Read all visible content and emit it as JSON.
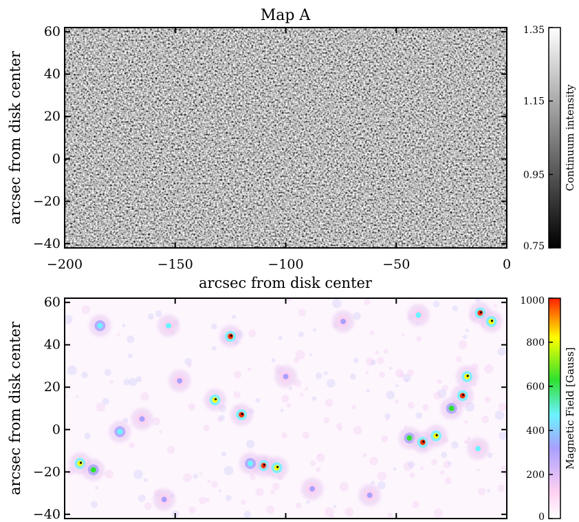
{
  "figure_title": "Map A",
  "chart_data": [
    {
      "type": "heatmap",
      "title": "Map A",
      "xlabel": "arcsec from disk center",
      "ylabel": "arcsec from disk center",
      "xlim": [
        -200,
        0
      ],
      "ylim": [
        -42,
        62
      ],
      "x_ticks": [
        -200,
        -150,
        -100,
        -50,
        0
      ],
      "x_tick_labels": [
        "−200",
        "−150",
        "−100",
        "−50",
        "0"
      ],
      "y_ticks": [
        -40,
        -20,
        0,
        20,
        40,
        60
      ],
      "y_tick_labels": [
        "−40",
        "−20",
        "0",
        "20",
        "40",
        "60"
      ],
      "colorbar": {
        "label": "Continuum intensity",
        "range": [
          0.75,
          1.35
        ],
        "ticks": [
          0.75,
          0.95,
          1.15,
          1.35
        ],
        "tick_labels": [
          "0.75",
          "0.95",
          "1.15",
          "1.35"
        ],
        "colormap": "grayscale"
      },
      "pattern": "solar granulation"
    },
    {
      "type": "heatmap",
      "xlabel": "",
      "ylabel": "arcsec from disk center",
      "xlim": [
        -200,
        0
      ],
      "ylim": [
        -42,
        62
      ],
      "x_ticks": [
        -200,
        -150,
        -100,
        -50,
        0
      ],
      "y_ticks": [
        -40,
        -20,
        0,
        20,
        40,
        60
      ],
      "y_tick_labels": [
        "−40",
        "−20",
        "0",
        "20",
        "40",
        "60"
      ],
      "colorbar": {
        "label": "Magnetic Field [Gauss]",
        "range": [
          0,
          1000
        ],
        "ticks": [
          0,
          200,
          400,
          600,
          800,
          1000
        ],
        "tick_labels": [
          "0",
          "200",
          "400",
          "600",
          "800",
          "1000"
        ],
        "colormap": [
          "#ffffff",
          "#ffd0f0",
          "#a9a0ff",
          "#6cf2ff",
          "#2fe02f",
          "#ffff00",
          "#ff3000"
        ]
      },
      "field_concentrations": [
        {
          "x": -184,
          "y": 49,
          "b": 500
        },
        {
          "x": -153,
          "y": 49,
          "b": 450
        },
        {
          "x": -125,
          "y": 44,
          "b": 1000
        },
        {
          "x": -74,
          "y": 51,
          "b": 400
        },
        {
          "x": -40,
          "y": 54,
          "b": 450
        },
        {
          "x": -12,
          "y": 55,
          "b": 1000
        },
        {
          "x": -7,
          "y": 51,
          "b": 900
        },
        {
          "x": -100,
          "y": 25,
          "b": 400
        },
        {
          "x": -148,
          "y": 23,
          "b": 350
        },
        {
          "x": -132,
          "y": 14,
          "b": 800
        },
        {
          "x": -120,
          "y": 7,
          "b": 1000
        },
        {
          "x": -18,
          "y": 25,
          "b": 900
        },
        {
          "x": -20,
          "y": 16,
          "b": 1000
        },
        {
          "x": -25,
          "y": 10,
          "b": 600
        },
        {
          "x": -165,
          "y": 5,
          "b": 300
        },
        {
          "x": -175,
          "y": -1,
          "b": 500
        },
        {
          "x": -44,
          "y": -4,
          "b": 700
        },
        {
          "x": -38,
          "y": -6,
          "b": 1000
        },
        {
          "x": -32,
          "y": -3,
          "b": 800
        },
        {
          "x": -193,
          "y": -16,
          "b": 900
        },
        {
          "x": -187,
          "y": -19,
          "b": 600
        },
        {
          "x": -110,
          "y": -17,
          "b": 1000
        },
        {
          "x": -104,
          "y": -18,
          "b": 900
        },
        {
          "x": -116,
          "y": -16,
          "b": 500
        },
        {
          "x": -62,
          "y": -31,
          "b": 400
        },
        {
          "x": -88,
          "y": -28,
          "b": 350
        },
        {
          "x": -13,
          "y": -9,
          "b": 450
        },
        {
          "x": -155,
          "y": -33,
          "b": 300
        }
      ]
    }
  ]
}
